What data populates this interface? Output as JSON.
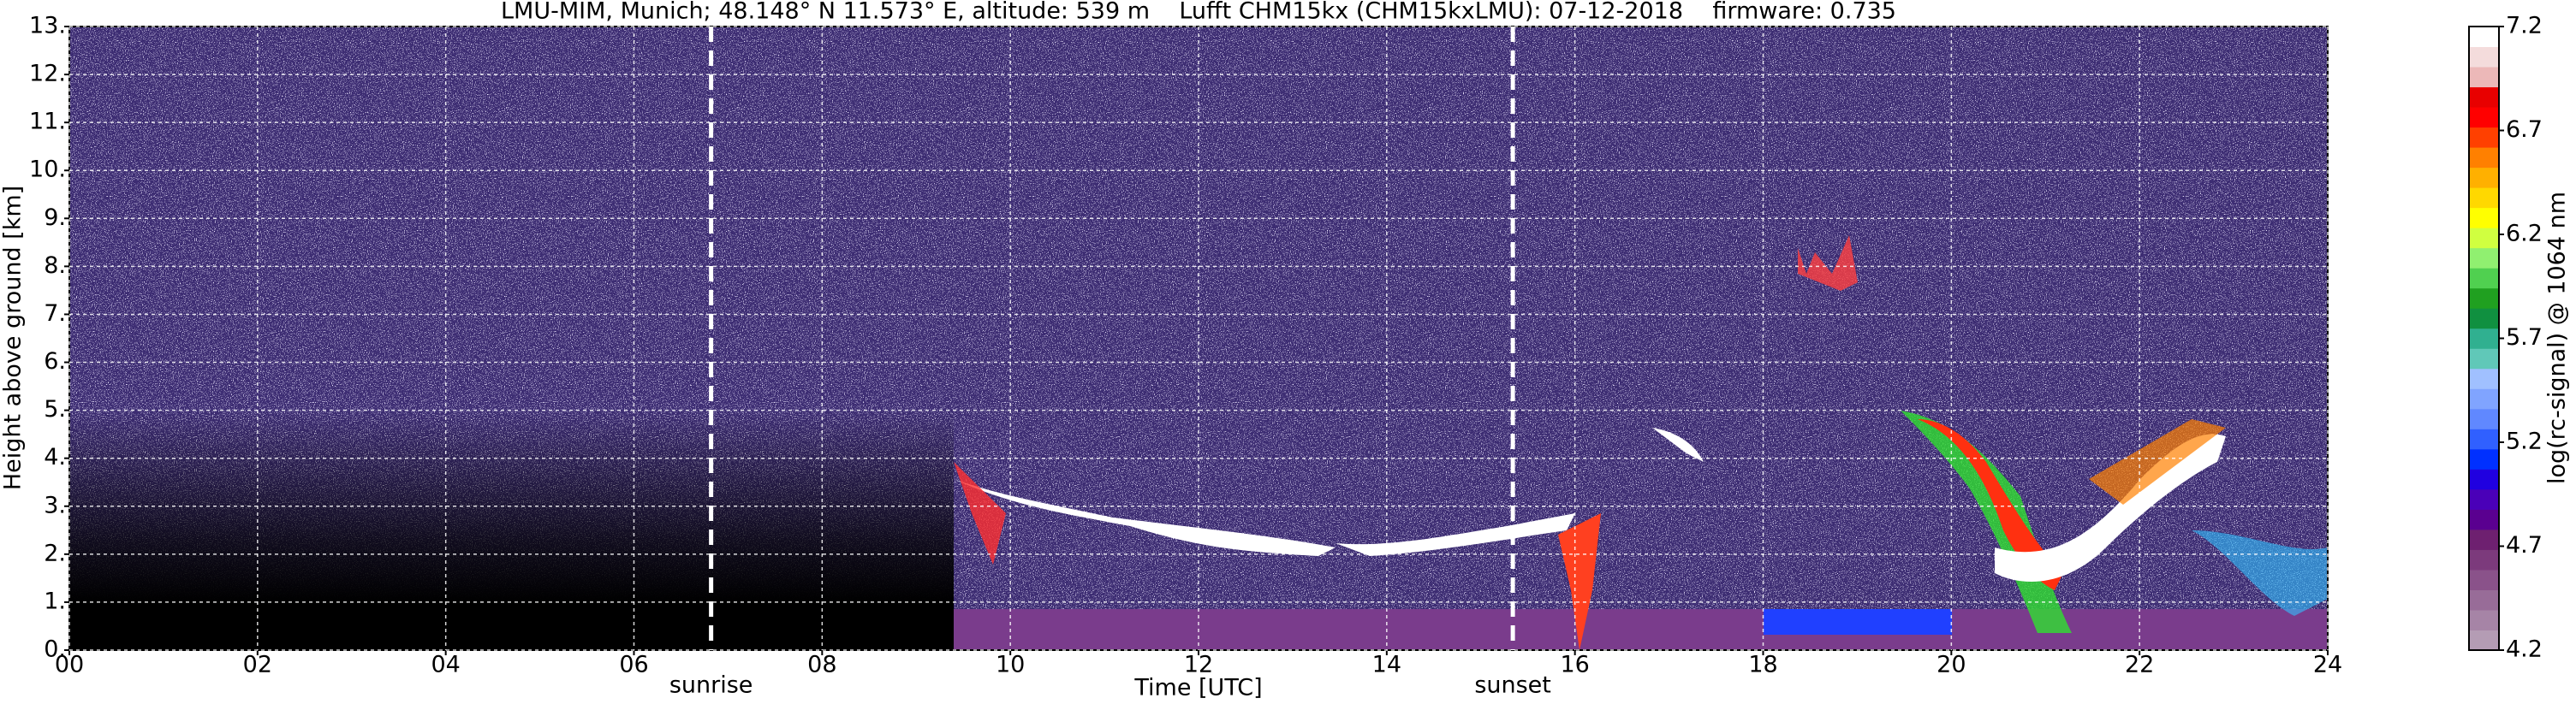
{
  "chart_data": {
    "type": "heatmap",
    "title": "LMU-MIM, Munich; 48.148° N 11.573° E, altitude: 539 m    Lufft CHM15kx (CHM15kxLMU): 07-12-2018    firmware: 0.735",
    "x_label": "Time [UTC]",
    "y_label": "Height above ground [km]",
    "xlim": [
      0,
      24
    ],
    "xticks": [
      {
        "value": 0,
        "label": "00"
      },
      {
        "value": 2,
        "label": "02"
      },
      {
        "value": 4,
        "label": "04"
      },
      {
        "value": 6,
        "label": "06"
      },
      {
        "value": 8,
        "label": "08"
      },
      10,
      12,
      14,
      16,
      18,
      20,
      22,
      24
    ],
    "ylim": [
      0,
      13
    ],
    "yticks": [
      {
        "value": 0,
        "label": "0."
      },
      {
        "value": 1,
        "label": "1."
      },
      {
        "value": 2,
        "label": "2."
      },
      {
        "value": 3,
        "label": "3."
      },
      {
        "value": 4,
        "label": "4."
      },
      {
        "value": 5,
        "label": "5."
      },
      {
        "value": 6,
        "label": "6."
      },
      {
        "value": 7,
        "label": "7."
      },
      {
        "value": 8,
        "label": "8."
      },
      {
        "value": 9,
        "label": "9."
      },
      {
        "value": 10,
        "label": "10."
      },
      {
        "value": 11,
        "label": "11."
      },
      {
        "value": 12,
        "label": "12."
      },
      {
        "value": 13,
        "label": "13."
      }
    ],
    "grid": true,
    "markers": [
      {
        "name": "sunrise",
        "x": 6.82
      },
      {
        "name": "sunset",
        "x": 15.34
      }
    ],
    "colorbar": {
      "label": "log(rc-signal) @ 1064 nm",
      "lim": [
        4.2,
        7.2
      ],
      "ticks": [
        4.2,
        4.7,
        5.2,
        5.7,
        6.2,
        6.7,
        7.2
      ],
      "colors": [
        "#b49cb4",
        "#a684a6",
        "#986c98",
        "#8a528a",
        "#7c3a7c",
        "#6e2070",
        "#5a0090",
        "#4a00b8",
        "#2000e0",
        "#0030ff",
        "#3060ff",
        "#6088ff",
        "#80a4ff",
        "#a0c0ff",
        "#60c8b8",
        "#30b090",
        "#109040",
        "#20a020",
        "#50d050",
        "#90f070",
        "#d0ff40",
        "#ffff00",
        "#ffd800",
        "#ffb000",
        "#ff8000",
        "#ff4000",
        "#ff0000",
        "#e80000",
        "#ecb8b8",
        "#f4dcdc",
        "#ffffff"
      ]
    }
  }
}
